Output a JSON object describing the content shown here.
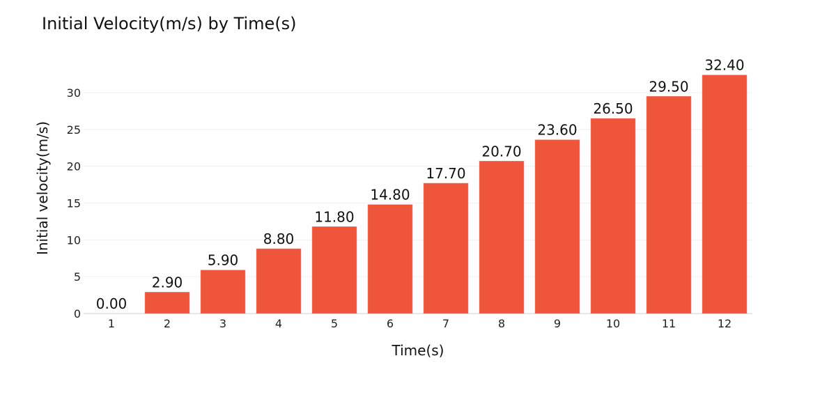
{
  "chart_data": {
    "type": "bar",
    "title": "Initial Velocity(m/s) by Time(s)",
    "xlabel": "Time(s)",
    "ylabel": "Initial velocity(m/s)",
    "categories": [
      "1",
      "2",
      "3",
      "4",
      "5",
      "6",
      "7",
      "8",
      "9",
      "10",
      "11",
      "12"
    ],
    "values": [
      0.0,
      2.9,
      5.9,
      8.8,
      11.8,
      14.8,
      17.7,
      20.7,
      23.6,
      26.5,
      29.5,
      32.4
    ],
    "value_labels": [
      "0.00",
      "2.90",
      "5.90",
      "8.80",
      "11.80",
      "14.80",
      "17.70",
      "20.70",
      "23.60",
      "26.50",
      "29.50",
      "32.40"
    ],
    "yticks": [
      0,
      5,
      10,
      15,
      20,
      25,
      30
    ],
    "ylim": [
      0,
      34.1
    ],
    "grid": true,
    "legend": "none",
    "bar_color": "#ef553b"
  }
}
